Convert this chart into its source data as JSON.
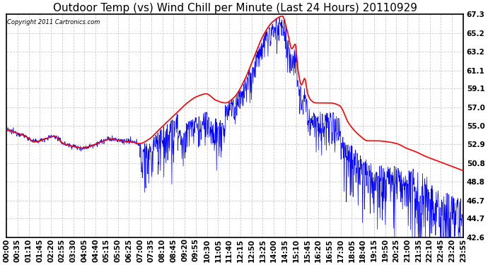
{
  "title": "Outdoor Temp (vs) Wind Chill per Minute (Last 24 Hours) 20110929",
  "copyright": "Copyright 2011 Cartronics.com",
  "yticks": [
    42.6,
    44.7,
    46.7,
    48.8,
    50.8,
    52.9,
    55.0,
    57.0,
    59.1,
    61.1,
    63.2,
    65.2,
    67.3
  ],
  "ymin": 42.6,
  "ymax": 67.3,
  "xtick_labels": [
    "00:00",
    "00:35",
    "01:10",
    "01:45",
    "02:20",
    "02:55",
    "03:30",
    "04:05",
    "04:40",
    "05:15",
    "05:50",
    "06:25",
    "07:00",
    "07:35",
    "08:10",
    "08:45",
    "09:20",
    "09:55",
    "10:30",
    "11:05",
    "11:40",
    "12:15",
    "12:50",
    "13:25",
    "14:00",
    "14:35",
    "15:10",
    "15:45",
    "16:20",
    "16:55",
    "17:30",
    "18:05",
    "18:40",
    "19:15",
    "19:50",
    "20:25",
    "21:00",
    "21:35",
    "22:10",
    "22:45",
    "23:20",
    "23:55"
  ],
  "outer_temp_color": "#ff0000",
  "wind_chill_color": "#0000ff",
  "background_color": "#ffffff",
  "plot_bg_color": "#ffffff",
  "grid_color": "#cccccc",
  "title_fontsize": 11,
  "tick_fontsize": 7.5
}
